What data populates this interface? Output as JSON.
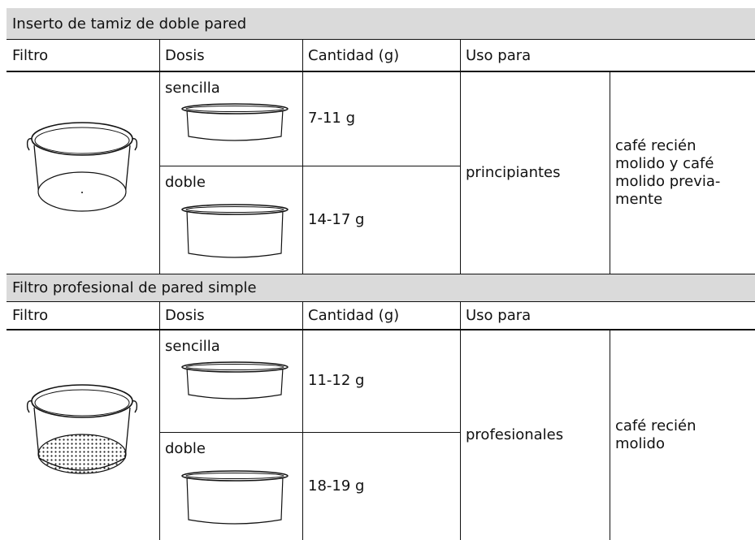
{
  "sections": [
    {
      "title": "Inserto de tamiz de doble pared",
      "header": [
        "Filtro",
        "Dosis",
        "Cantidad (g)",
        "Uso para"
      ],
      "rows": [
        {
          "dose": "sencilla",
          "amount": "7-11 g"
        },
        {
          "dose": "doble",
          "amount": "14-17 g"
        }
      ],
      "user": "principiantes",
      "use": [
        "café recién",
        "molido y café",
        "molido previa-",
        "mente"
      ]
    },
    {
      "title": "Filtro profesional de pared simple",
      "header": [
        "Filtro",
        "Dosis",
        "Cantidad (g)",
        "Uso para"
      ],
      "rows": [
        {
          "dose": "sencilla",
          "amount": "11-12 g"
        },
        {
          "dose": "doble",
          "amount": "18-19 g"
        }
      ],
      "user": "profesionales",
      "use": [
        "café recién",
        "molido"
      ]
    }
  ]
}
